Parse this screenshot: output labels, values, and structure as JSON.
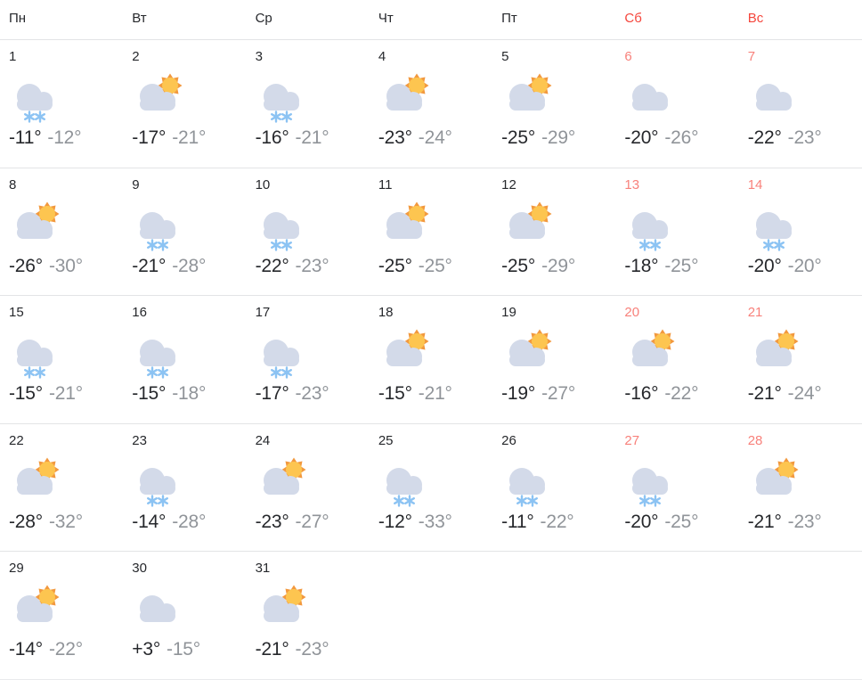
{
  "colors": {
    "text_dark": "#26282c",
    "temp_low_gray": "#909499",
    "weekend_header_red": "#f5463c",
    "weekend_day_red": "#f8817b",
    "cloud": "#d3dae9",
    "sun_disc": "#fdc550",
    "sun_rays": "#f2993f",
    "snowflake_blue": "#8cc3f3",
    "divider": "#e3e4e6"
  },
  "header": {
    "days": [
      {
        "label": "Пн",
        "weekend": false
      },
      {
        "label": "Вт",
        "weekend": false
      },
      {
        "label": "Ср",
        "weekend": false
      },
      {
        "label": "Чт",
        "weekend": false
      },
      {
        "label": "Пт",
        "weekend": false
      },
      {
        "label": "Сб",
        "weekend": true
      },
      {
        "label": "Вс",
        "weekend": true
      }
    ]
  },
  "calendar": {
    "days": [
      {
        "num": "1",
        "icon": "cloud-snow",
        "high": "-11°",
        "low": "-12°",
        "weekend": false
      },
      {
        "num": "2",
        "icon": "cloud-sun",
        "high": "-17°",
        "low": "-21°",
        "weekend": false
      },
      {
        "num": "3",
        "icon": "cloud-snow",
        "high": "-16°",
        "low": "-21°",
        "weekend": false
      },
      {
        "num": "4",
        "icon": "cloud-sun",
        "high": "-23°",
        "low": "-24°",
        "weekend": false
      },
      {
        "num": "5",
        "icon": "cloud-sun",
        "high": "-25°",
        "low": "-29°",
        "weekend": false
      },
      {
        "num": "6",
        "icon": "cloud",
        "high": "-20°",
        "low": "-26°",
        "weekend": true
      },
      {
        "num": "7",
        "icon": "cloud",
        "high": "-22°",
        "low": "-23°",
        "weekend": true
      },
      {
        "num": "8",
        "icon": "cloud-sun",
        "high": "-26°",
        "low": "-30°",
        "weekend": false
      },
      {
        "num": "9",
        "icon": "cloud-snow",
        "high": "-21°",
        "low": "-28°",
        "weekend": false
      },
      {
        "num": "10",
        "icon": "cloud-snow",
        "high": "-22°",
        "low": "-23°",
        "weekend": false
      },
      {
        "num": "11",
        "icon": "cloud-sun",
        "high": "-25°",
        "low": "-25°",
        "weekend": false
      },
      {
        "num": "12",
        "icon": "cloud-sun",
        "high": "-25°",
        "low": "-29°",
        "weekend": false
      },
      {
        "num": "13",
        "icon": "cloud-snow",
        "high": "-18°",
        "low": "-25°",
        "weekend": true
      },
      {
        "num": "14",
        "icon": "cloud-snow",
        "high": "-20°",
        "low": "-20°",
        "weekend": true
      },
      {
        "num": "15",
        "icon": "cloud-snow",
        "high": "-15°",
        "low": "-21°",
        "weekend": false
      },
      {
        "num": "16",
        "icon": "cloud-snow",
        "high": "-15°",
        "low": "-18°",
        "weekend": false
      },
      {
        "num": "17",
        "icon": "cloud-snow",
        "high": "-17°",
        "low": "-23°",
        "weekend": false
      },
      {
        "num": "18",
        "icon": "cloud-sun",
        "high": "-15°",
        "low": "-21°",
        "weekend": false
      },
      {
        "num": "19",
        "icon": "cloud-sun",
        "high": "-19°",
        "low": "-27°",
        "weekend": false
      },
      {
        "num": "20",
        "icon": "cloud-sun",
        "high": "-16°",
        "low": "-22°",
        "weekend": true
      },
      {
        "num": "21",
        "icon": "cloud-sun",
        "high": "-21°",
        "low": "-24°",
        "weekend": true
      },
      {
        "num": "22",
        "icon": "cloud-sun",
        "high": "-28°",
        "low": "-32°",
        "weekend": false
      },
      {
        "num": "23",
        "icon": "cloud-snow",
        "high": "-14°",
        "low": "-28°",
        "weekend": false
      },
      {
        "num": "24",
        "icon": "cloud-sun",
        "high": "-23°",
        "low": "-27°",
        "weekend": false
      },
      {
        "num": "25",
        "icon": "cloud-snow",
        "high": "-12°",
        "low": "-33°",
        "weekend": false
      },
      {
        "num": "26",
        "icon": "cloud-snow",
        "high": "-11°",
        "low": "-22°",
        "weekend": false
      },
      {
        "num": "27",
        "icon": "cloud-snow",
        "high": "-20°",
        "low": "-25°",
        "weekend": true
      },
      {
        "num": "28",
        "icon": "cloud-sun",
        "high": "-21°",
        "low": "-23°",
        "weekend": true
      },
      {
        "num": "29",
        "icon": "cloud-sun",
        "high": "-14°",
        "low": "-22°",
        "weekend": false
      },
      {
        "num": "30",
        "icon": "cloud",
        "high": "+3°",
        "low": "-15°",
        "weekend": false
      },
      {
        "num": "31",
        "icon": "cloud-sun",
        "high": "-21°",
        "low": "-23°",
        "weekend": false
      }
    ],
    "trailing_empty_cells": 4
  }
}
